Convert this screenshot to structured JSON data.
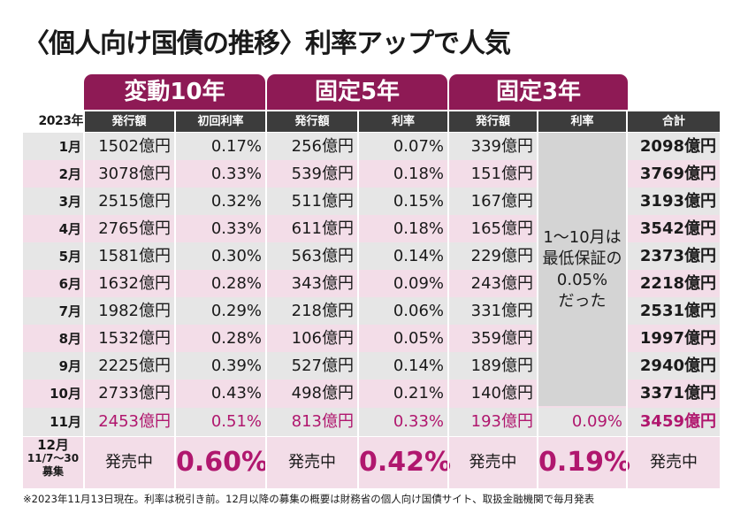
{
  "title": "〈個人向け国債の推移〉利率アップで人気",
  "groups": {
    "hendou10": "変動10年",
    "kotei5": "固定5年",
    "kotei3": "固定3年"
  },
  "header": {
    "year": "2023年",
    "h10_issue": "発行額",
    "h10_rate": "初回利率",
    "k5_issue": "発行額",
    "k5_rate": "利率",
    "k3_issue": "発行額",
    "k3_rate": "利率",
    "total": "合計"
  },
  "rows": [
    {
      "month": "1月",
      "h10": "1502億円",
      "h10r": "0.17%",
      "k5": "256億円",
      "k5r": "0.07%",
      "k3": "339億円",
      "total": "2098億円"
    },
    {
      "month": "2月",
      "h10": "3078億円",
      "h10r": "0.33%",
      "k5": "539億円",
      "k5r": "0.18%",
      "k3": "151億円",
      "total": "3769億円"
    },
    {
      "month": "3月",
      "h10": "2515億円",
      "h10r": "0.32%",
      "k5": "511億円",
      "k5r": "0.15%",
      "k3": "167億円",
      "total": "3193億円"
    },
    {
      "month": "4月",
      "h10": "2765億円",
      "h10r": "0.33%",
      "k5": "611億円",
      "k5r": "0.18%",
      "k3": "165億円",
      "total": "3542億円"
    },
    {
      "month": "5月",
      "h10": "1581億円",
      "h10r": "0.30%",
      "k5": "563億円",
      "k5r": "0.14%",
      "k3": "229億円",
      "total": "2373億円"
    },
    {
      "month": "6月",
      "h10": "1632億円",
      "h10r": "0.28%",
      "k5": "343億円",
      "k5r": "0.09%",
      "k3": "243億円",
      "total": "2218億円"
    },
    {
      "month": "7月",
      "h10": "1982億円",
      "h10r": "0.29%",
      "k5": "218億円",
      "k5r": "0.06%",
      "k3": "331億円",
      "total": "2531億円"
    },
    {
      "month": "8月",
      "h10": "1532億円",
      "h10r": "0.28%",
      "k5": "106億円",
      "k5r": "0.05%",
      "k3": "359億円",
      "total": "1997億円"
    },
    {
      "month": "9月",
      "h10": "2225億円",
      "h10r": "0.39%",
      "k5": "527億円",
      "k5r": "0.14%",
      "k3": "189億円",
      "total": "2940億円"
    },
    {
      "month": "10月",
      "h10": "2733億円",
      "h10r": "0.43%",
      "k5": "498億円",
      "k5r": "0.21%",
      "k3": "140億円",
      "total": "3371億円"
    }
  ],
  "merged_note": [
    "1～10月は",
    "最低保証の",
    "0.05%",
    "だった"
  ],
  "nov": {
    "month": "11月",
    "h10": "2453億円",
    "h10r": "0.51%",
    "k5": "813億円",
    "k5r": "0.33%",
    "k3": "193億円",
    "k3r": "0.09%",
    "total": "3459億円"
  },
  "dec": {
    "month": "12月",
    "period": "11/7～30",
    "label": "募集",
    "h10_sale": "発売中",
    "h10_rate": "0.60%",
    "k5_sale": "発売中",
    "k5_rate": "0.42%",
    "k3_sale": "発売中",
    "k3_rate": "0.19%",
    "total_sale": "発売中"
  },
  "footnote": "※2023年11月13日現在。利率は税引き前。12月以降の募集の概要は財務省の個人向け国債サイト、取扱金融機関で毎月発表",
  "colors": {
    "accent": "#8e1a55",
    "rate_pink": "#b0176e",
    "stripe": "#f3dde8",
    "gray": "#e6e6e6"
  }
}
